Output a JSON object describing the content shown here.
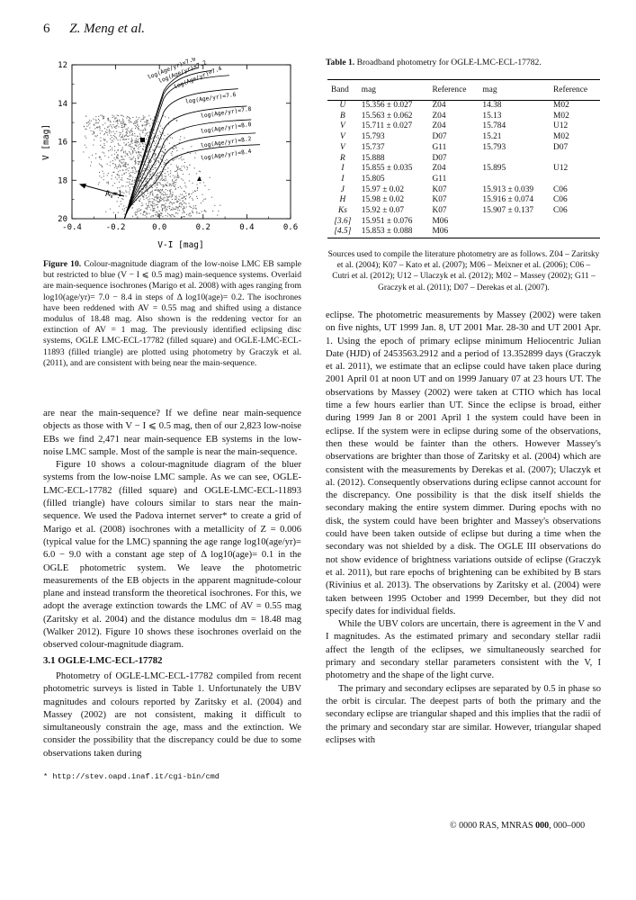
{
  "header": {
    "page_number": "6",
    "authors": "Z. Meng et al."
  },
  "figure": {
    "x_axis_label": "V-I [mag]",
    "y_axis_label": "V [mag]",
    "x_ticks": [
      "-0.4",
      "-0.2",
      "0.0",
      "0.2",
      "0.4",
      "0.6"
    ],
    "y_ticks": [
      "12",
      "14",
      "16",
      "18",
      "20"
    ],
    "extinction_label": "A",
    "extinction_sub": "V",
    "extinction_eq": "=1",
    "isochrones": [
      {
        "label": "log(Age/yr)=7.0"
      },
      {
        "label": "log(Age/yr)=7.2"
      },
      {
        "label": "log(Age/yr)=7.4"
      },
      {
        "label": "log(Age/yr)=7.6"
      },
      {
        "label": "log(Age/yr)=7.8"
      },
      {
        "label": "log(Age/yr)=8.0"
      },
      {
        "label": "log(Age/yr)=8.2"
      },
      {
        "label": "log(Age/yr)=8.4"
      }
    ],
    "caption_label": "Figure 10.",
    "caption_text": "Colour-magnitude diagram of the low-noise LMC EB sample but restricted to blue (V − I ⩽ 0.5 mag) main-sequence systems. Overlaid are main-sequence isochrones (Marigo et al. 2008) with ages ranging from log10(age/yr)= 7.0 − 8.4 in steps of Δ log10(age)= 0.2. The isochrones have been reddened with AV = 0.55 mag and shifted using a distance modulus of 18.48 mag. Also shown is the reddening vector for an extinction of AV = 1 mag. The previously identified eclipsing disc systems, OGLE LMC-ECL-17782 (filled square) and OGLE-LMC-ECL-11893 (filled triangle) are plotted using photometry by Graczyk et al. (2011), and are consistent with being near the main-sequence."
  },
  "table": {
    "caption_label": "Table 1.",
    "caption_text": "Broadband photometry for OGLE-LMC-ECL-17782.",
    "headers": [
      "Band",
      "mag",
      "Reference",
      "mag",
      "Reference"
    ],
    "rows": [
      [
        "U",
        "15.356 ± 0.027",
        "Z04",
        "14.38",
        "M02"
      ],
      [
        "B",
        "15.563 ± 0.062",
        "Z04",
        "15.13",
        "M02"
      ],
      [
        "V",
        "15.711 ± 0.027",
        "Z04",
        "15.784",
        "U12"
      ],
      [
        "V",
        "15.793",
        "D07",
        "15.21",
        "M02"
      ],
      [
        "V",
        "15.737",
        "G11",
        "15.793",
        "D07"
      ],
      [
        "R",
        "15.888",
        "D07",
        "",
        ""
      ],
      [
        "I",
        "15.855 ± 0.035",
        "Z04",
        "15.895",
        "U12"
      ],
      [
        "I",
        "15.805",
        "G11",
        "",
        ""
      ],
      [
        "J",
        "15.97 ± 0.02",
        "K07",
        "15.913 ± 0.039",
        "C06"
      ],
      [
        "H",
        "15.98 ± 0.02",
        "K07",
        "15.916 ± 0.074",
        "C06"
      ],
      [
        "Ks",
        "15.92 ± 0.07",
        "K07",
        "15.907 ± 0.137",
        "C06"
      ],
      [
        "[3.6]",
        "15.951 ± 0.076",
        "M06",
        "",
        ""
      ],
      [
        "[4.5]",
        "15.853 ± 0.088",
        "M06",
        "",
        ""
      ]
    ],
    "note": "Sources used to compile the literature photometry are as follows. Z04 – Zaritsky et al. (2004); K07 – Kato et al. (2007); M06 – Meixner et al. (2006); C06 – Cutri et al. (2012); U12 – Ulaczyk et al. (2012); M02 – Massey (2002); G11 – Graczyk et al. (2011); D07 – Derekas et al. (2007)."
  },
  "left_column": {
    "p1": "are near the main-sequence? If we define near main-sequence objects as those with V − I ⩽ 0.5 mag, then of our 2,823 low-noise EBs we find 2,471 near main-sequence EB systems in the low-noise LMC sample. Most of the sample is near the main-sequence.",
    "p2": "Figure 10 shows a colour-magnitude diagram of the bluer systems from the low-noise LMC sample. As we can see, OGLE-LMC-ECL-17782 (filled square) and OGLE-LMC-ECL-11893 (filled triangle) have colours similar to stars near the main-sequence. We used the Padova internet server* to create a grid of Marigo et al. (2008) isochrones with a metallicity of Z = 0.006 (typical value for the LMC) spanning the age range log10(age/yr)= 6.0 − 9.0 with a constant age step of Δ log10(age)= 0.1 in the OGLE photometric system. We leave the photometric measurements of the EB objects in the apparent magnitude-colour plane and instead transform the theoretical isochrones. For this, we adopt the average extinction towards the LMC of AV = 0.55 mag (Zaritsky et al. 2004) and the distance modulus dm = 18.48 mag (Walker 2012). Figure 10 shows these isochrones overlaid on the observed colour-magnitude diagram.",
    "section_title": "3.1   OGLE-LMC-ECL-17782",
    "p3": "Photometry of OGLE-LMC-ECL-17782 compiled from recent photometric surveys is listed in Table 1. Unfortunately the UBV magnitudes and colours reported by Zaritsky et al. (2004) and Massey (2002) are not consistent, making it difficult to simultaneously constrain the age, mass and the extinction. We consider the possibility that the discrepancy could be due to some observations taken during",
    "footnote": "* http://stev.oapd.inaf.it/cgi-bin/cmd"
  },
  "right_column": {
    "p1": "eclipse. The photometric measurements by Massey (2002) were taken on five nights, UT 1999 Jan. 8, UT 2001 Mar. 28-30 and UT 2001 Apr. 1. Using the epoch of primary eclipse minimum Heliocentric Julian Date (HJD) of 2453563.2912 and a period of 13.352899 days (Graczyk et al. 2011), we estimate that an eclipse could have taken place during 2001 April 01 at noon UT and on 1999 January 07 at 23 hours UT. The observations by Massey (2002) were taken at CTIO which has local time a few hours earlier than UT. Since the eclipse is broad, either during 1999 Jan 8 or 2001 April 1 the system could have been in eclipse. If the system were in eclipse during some of the observations, then these would be fainter than the others. However Massey's observations are brighter than those of Zaritsky et al. (2004) which are consistent with the measurements by Derekas et al. (2007); Ulaczyk et al. (2012). Consequently observations during eclipse cannot account for the discrepancy. One possibility is that the disk itself shields the secondary making the entire system dimmer. During epochs with no disk, the system could have been brighter and Massey's observations could have been taken outside of eclipse but during a time when the secondary was not shielded by a disk. The OGLE III observations do not show evidence of brightness variations outside of eclipse (Graczyk et al. 2011), but rare epochs of brightening can be exhibited by B stars (Rivinius et al. 2013). The observations by Zaritsky et al. (2004) were taken between 1995 October and 1999 December, but they did not specify dates for individual fields.",
    "p2": "While the UBV colors are uncertain, there is agreement in the V and I magnitudes. As the estimated primary and secondary stellar radii affect the length of the eclipses, we simultaneously searched for primary and secondary stellar parameters consistent with the V, I photometry and the shape of the light curve.",
    "p3": "The primary and secondary eclipses are separated by 0.5 in phase so the orbit is circular. The deepest parts of both the primary and the secondary eclipse are triangular shaped and this implies that the radii of the primary and secondary star are similar. However, triangular shaped eclipses with"
  },
  "footer": {
    "prefix": "© 0000 RAS, MNRAS ",
    "volume": "000",
    "pages": ", 000–000"
  }
}
